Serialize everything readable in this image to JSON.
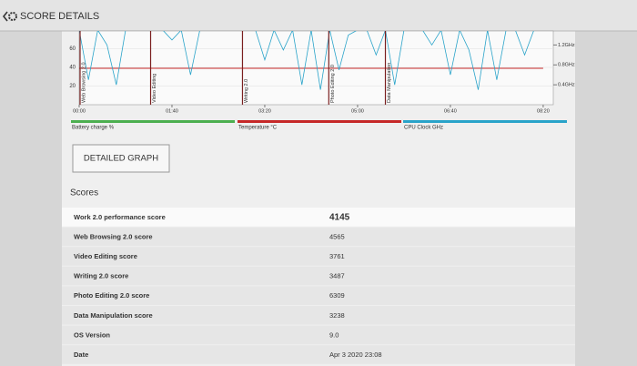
{
  "header": {
    "title": "SCORE DETAILS"
  },
  "graph": {
    "type": "line",
    "xlim": [
      0,
      505
    ],
    "ylim": [
      0,
      80
    ],
    "y2lim": [
      0,
      1.5
    ],
    "xticks": [
      {
        "value": 0,
        "label": "00:00"
      },
      {
        "value": 100,
        "label": "01:40"
      },
      {
        "value": 200,
        "label": "03:20"
      },
      {
        "value": 300,
        "label": "05:00"
      },
      {
        "value": 400,
        "label": "06:40"
      },
      {
        "value": 500,
        "label": "08:20"
      }
    ],
    "yticks": [
      20,
      40,
      60
    ],
    "y2ticks": [
      {
        "value": 0.4,
        "label": "0.4GHz"
      },
      {
        "value": 0.8,
        "label": "0.8GHz"
      },
      {
        "value": 1.2,
        "label": "1.2GHz"
      }
    ],
    "markers": [
      {
        "label": "Web Browsing 2.0",
        "x": 0
      },
      {
        "label": "Video Editing",
        "x": 76
      },
      {
        "label": "Writing 2.0",
        "x": 175
      },
      {
        "label": "Photo Editing 2.0",
        "x": 268
      },
      {
        "label": "Data Manipulation",
        "x": 329
      }
    ],
    "series": [
      {
        "name": "Battery charge %",
        "color": "#4caf50"
      },
      {
        "name": "Temperature °C",
        "color": "#c62828",
        "x": [
          0,
          500
        ],
        "values": [
          39,
          39
        ]
      },
      {
        "name": "CPU Clock GHz",
        "color": "#29a3c9",
        "axis": "y2",
        "x": [
          0,
          10,
          20,
          30,
          40,
          50,
          60,
          70,
          80,
          90,
          100,
          110,
          120,
          130,
          140,
          150,
          160,
          170,
          180,
          190,
          200,
          210,
          220,
          230,
          240,
          250,
          260,
          270,
          280,
          290,
          300,
          310,
          320,
          330,
          340,
          350,
          360,
          370,
          380,
          390,
          400,
          410,
          420,
          430,
          440,
          450,
          460,
          470,
          480,
          490
        ],
        "values": [
          1.5,
          0.5,
          1.5,
          1.2,
          0.4,
          1.5,
          1.5,
          1.5,
          1.5,
          1.5,
          1.3,
          1.5,
          0.6,
          1.5,
          1.5,
          1.5,
          1.5,
          1.5,
          1.5,
          1.5,
          0.9,
          1.5,
          1.1,
          1.5,
          0.4,
          1.5,
          0.3,
          1.5,
          0.7,
          1.4,
          1.5,
          1.5,
          1.0,
          1.5,
          0.4,
          1.5,
          1.5,
          1.5,
          1.2,
          1.5,
          0.6,
          1.5,
          1.1,
          0.3,
          1.5,
          0.5,
          1.5,
          1.5,
          1.0,
          1.5
        ]
      }
    ]
  },
  "button": {
    "label": "DETAILED GRAPH"
  },
  "scores": {
    "title": "Scores",
    "rows": [
      [
        "Work 2.0 performance score",
        "4145"
      ],
      [
        "Web Browsing 2.0 score",
        "4565"
      ],
      [
        "Video Editing score",
        "3761"
      ],
      [
        "Writing 2.0 score",
        "3487"
      ],
      [
        "Photo Editing 2.0 score",
        "6309"
      ],
      [
        "Data Manipulation score",
        "3238"
      ],
      [
        "OS Version",
        "9.0"
      ],
      [
        "Date",
        "Apr 3 2020 23:08"
      ]
    ]
  }
}
